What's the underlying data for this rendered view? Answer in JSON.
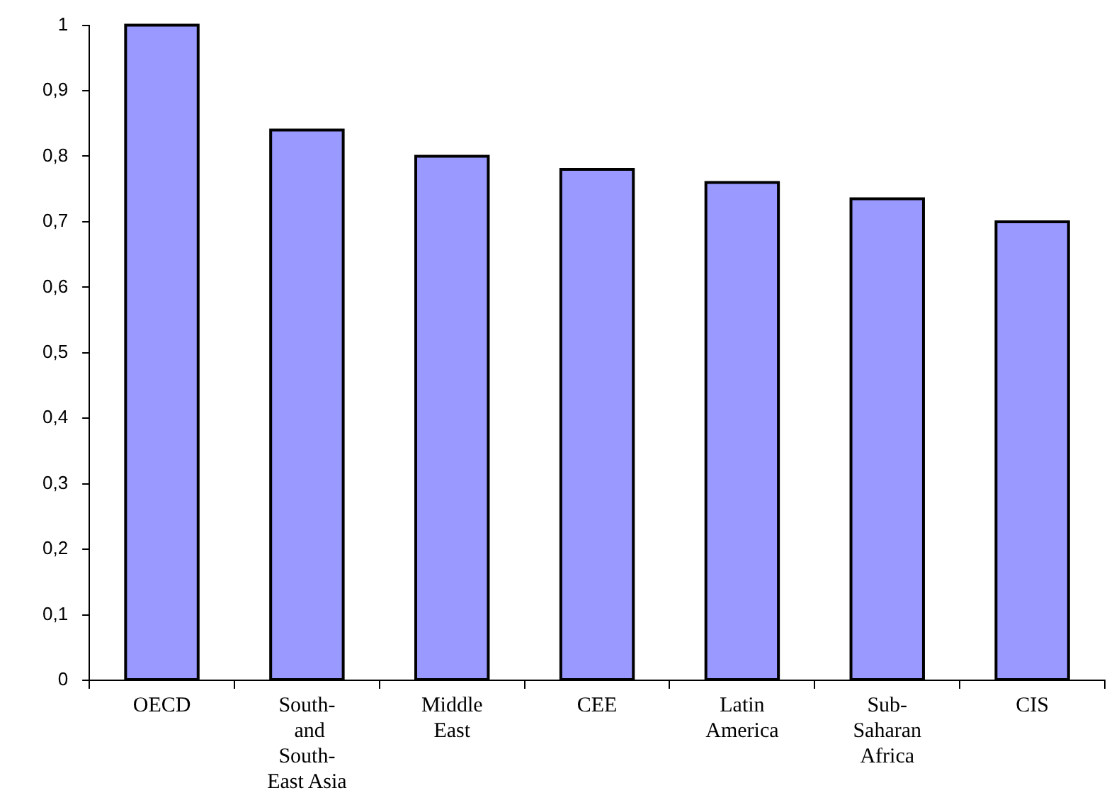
{
  "chart_data": {
    "type": "bar",
    "categories": [
      "OECD",
      "South- and South-East Asia",
      "Middle East",
      "CEE",
      "Latin America",
      "Sub-Saharan Africa",
      "CIS"
    ],
    "values": [
      1.0,
      0.84,
      0.8,
      0.78,
      0.76,
      0.735,
      0.7
    ],
    "color": "#9999ff",
    "ylim": [
      0,
      1
    ],
    "yticks": [
      0,
      {
        "value": 0.1,
        "label": "0,1"
      },
      {
        "value": 0.2,
        "label": "0,2"
      },
      {
        "value": 0.3,
        "label": "0,3"
      },
      {
        "value": 0.4,
        "label": "0,4"
      },
      {
        "value": 0.5,
        "label": "0,5"
      },
      {
        "value": 0.6,
        "label": "0,6"
      },
      {
        "value": 0.7,
        "label": "0,7"
      },
      {
        "value": 0.8,
        "label": "0,8"
      },
      {
        "value": 0.9,
        "label": "0,9"
      },
      1
    ],
    "grid": false,
    "legend": false
  }
}
